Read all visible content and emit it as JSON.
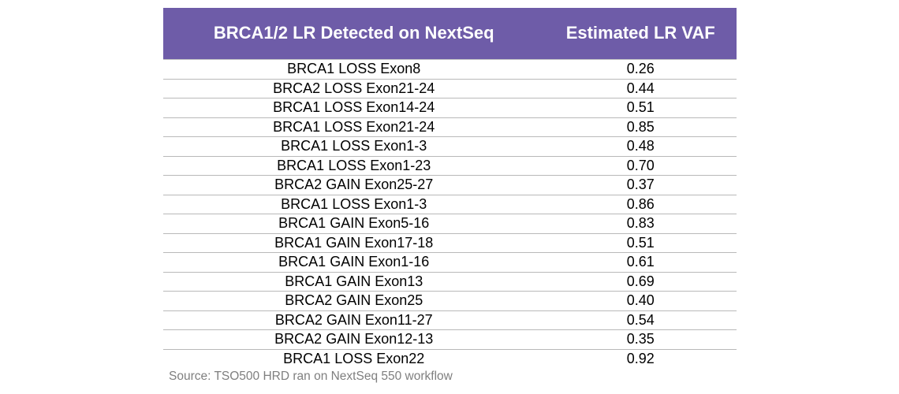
{
  "chart_data": {
    "type": "table",
    "columns": [
      "BRCA1/2 LR Detected on NextSeq",
      "Estimated LR VAF"
    ],
    "rows": [
      [
        "BRCA1 LOSS Exon8",
        "0.26"
      ],
      [
        "BRCA2 LOSS Exon21-24",
        "0.44"
      ],
      [
        "BRCA1 LOSS Exon14-24",
        "0.51"
      ],
      [
        "BRCA1 LOSS Exon21-24",
        "0.85"
      ],
      [
        "BRCA1 LOSS Exon1-3",
        "0.48"
      ],
      [
        "BRCA1 LOSS Exon1-23",
        "0.70"
      ],
      [
        "BRCA2 GAIN Exon25-27",
        "0.37"
      ],
      [
        "BRCA1 LOSS Exon1-3",
        "0.86"
      ],
      [
        "BRCA1 GAIN Exon5-16",
        "0.83"
      ],
      [
        "BRCA1 GAIN Exon17-18",
        "0.51"
      ],
      [
        "BRCA1 GAIN Exon1-16",
        "0.61"
      ],
      [
        "BRCA1 GAIN Exon13",
        "0.69"
      ],
      [
        "BRCA2 GAIN Exon25",
        "0.40"
      ],
      [
        "BRCA2 GAIN Exon11-27",
        "0.54"
      ],
      [
        "BRCA2 GAIN Exon12-13",
        "0.35"
      ],
      [
        "BRCA1 LOSS Exon22",
        "0.92"
      ]
    ],
    "source": "Source: TSO500 HRD ran on NextSeq 550 workflow",
    "layout": {
      "legend": "none",
      "grid": "horizontal-row-dividers"
    }
  },
  "colors": {
    "header_bg": "#6E5CA8",
    "header_text": "#FFFFFF",
    "row_divider": "#B9B9B9",
    "body_text": "#000000",
    "source_text": "#7F7F7F",
    "page_bg": "#FFFFFF"
  }
}
